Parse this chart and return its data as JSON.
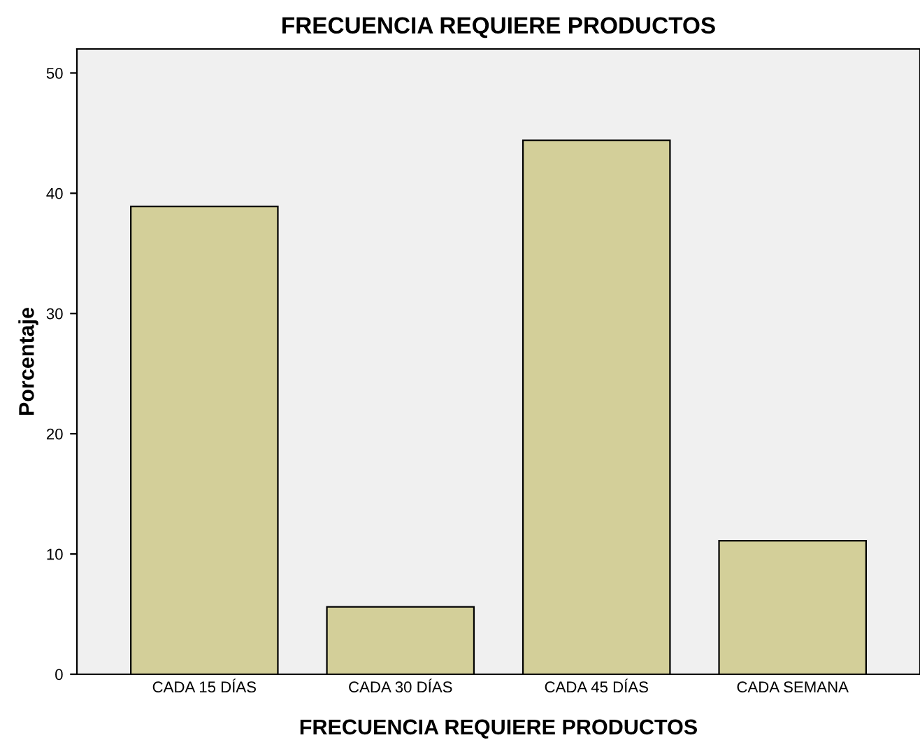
{
  "chart_data": {
    "type": "bar",
    "title": "FRECUENCIA REQUIERE PRODUCTOS",
    "xlabel": "FRECUENCIA REQUIERE PRODUCTOS",
    "ylabel": "Porcentaje",
    "categories": [
      "CADA 15 DÍAS",
      "CADA 30 DÍAS",
      "CADA 45 DÍAS",
      "CADA SEMANA"
    ],
    "values": [
      38.9,
      5.6,
      44.4,
      11.1
    ],
    "color": "#d3cf99",
    "ylim": [
      0,
      52
    ],
    "yticks": [
      0,
      10,
      20,
      30,
      40,
      50
    ],
    "grid": false
  }
}
